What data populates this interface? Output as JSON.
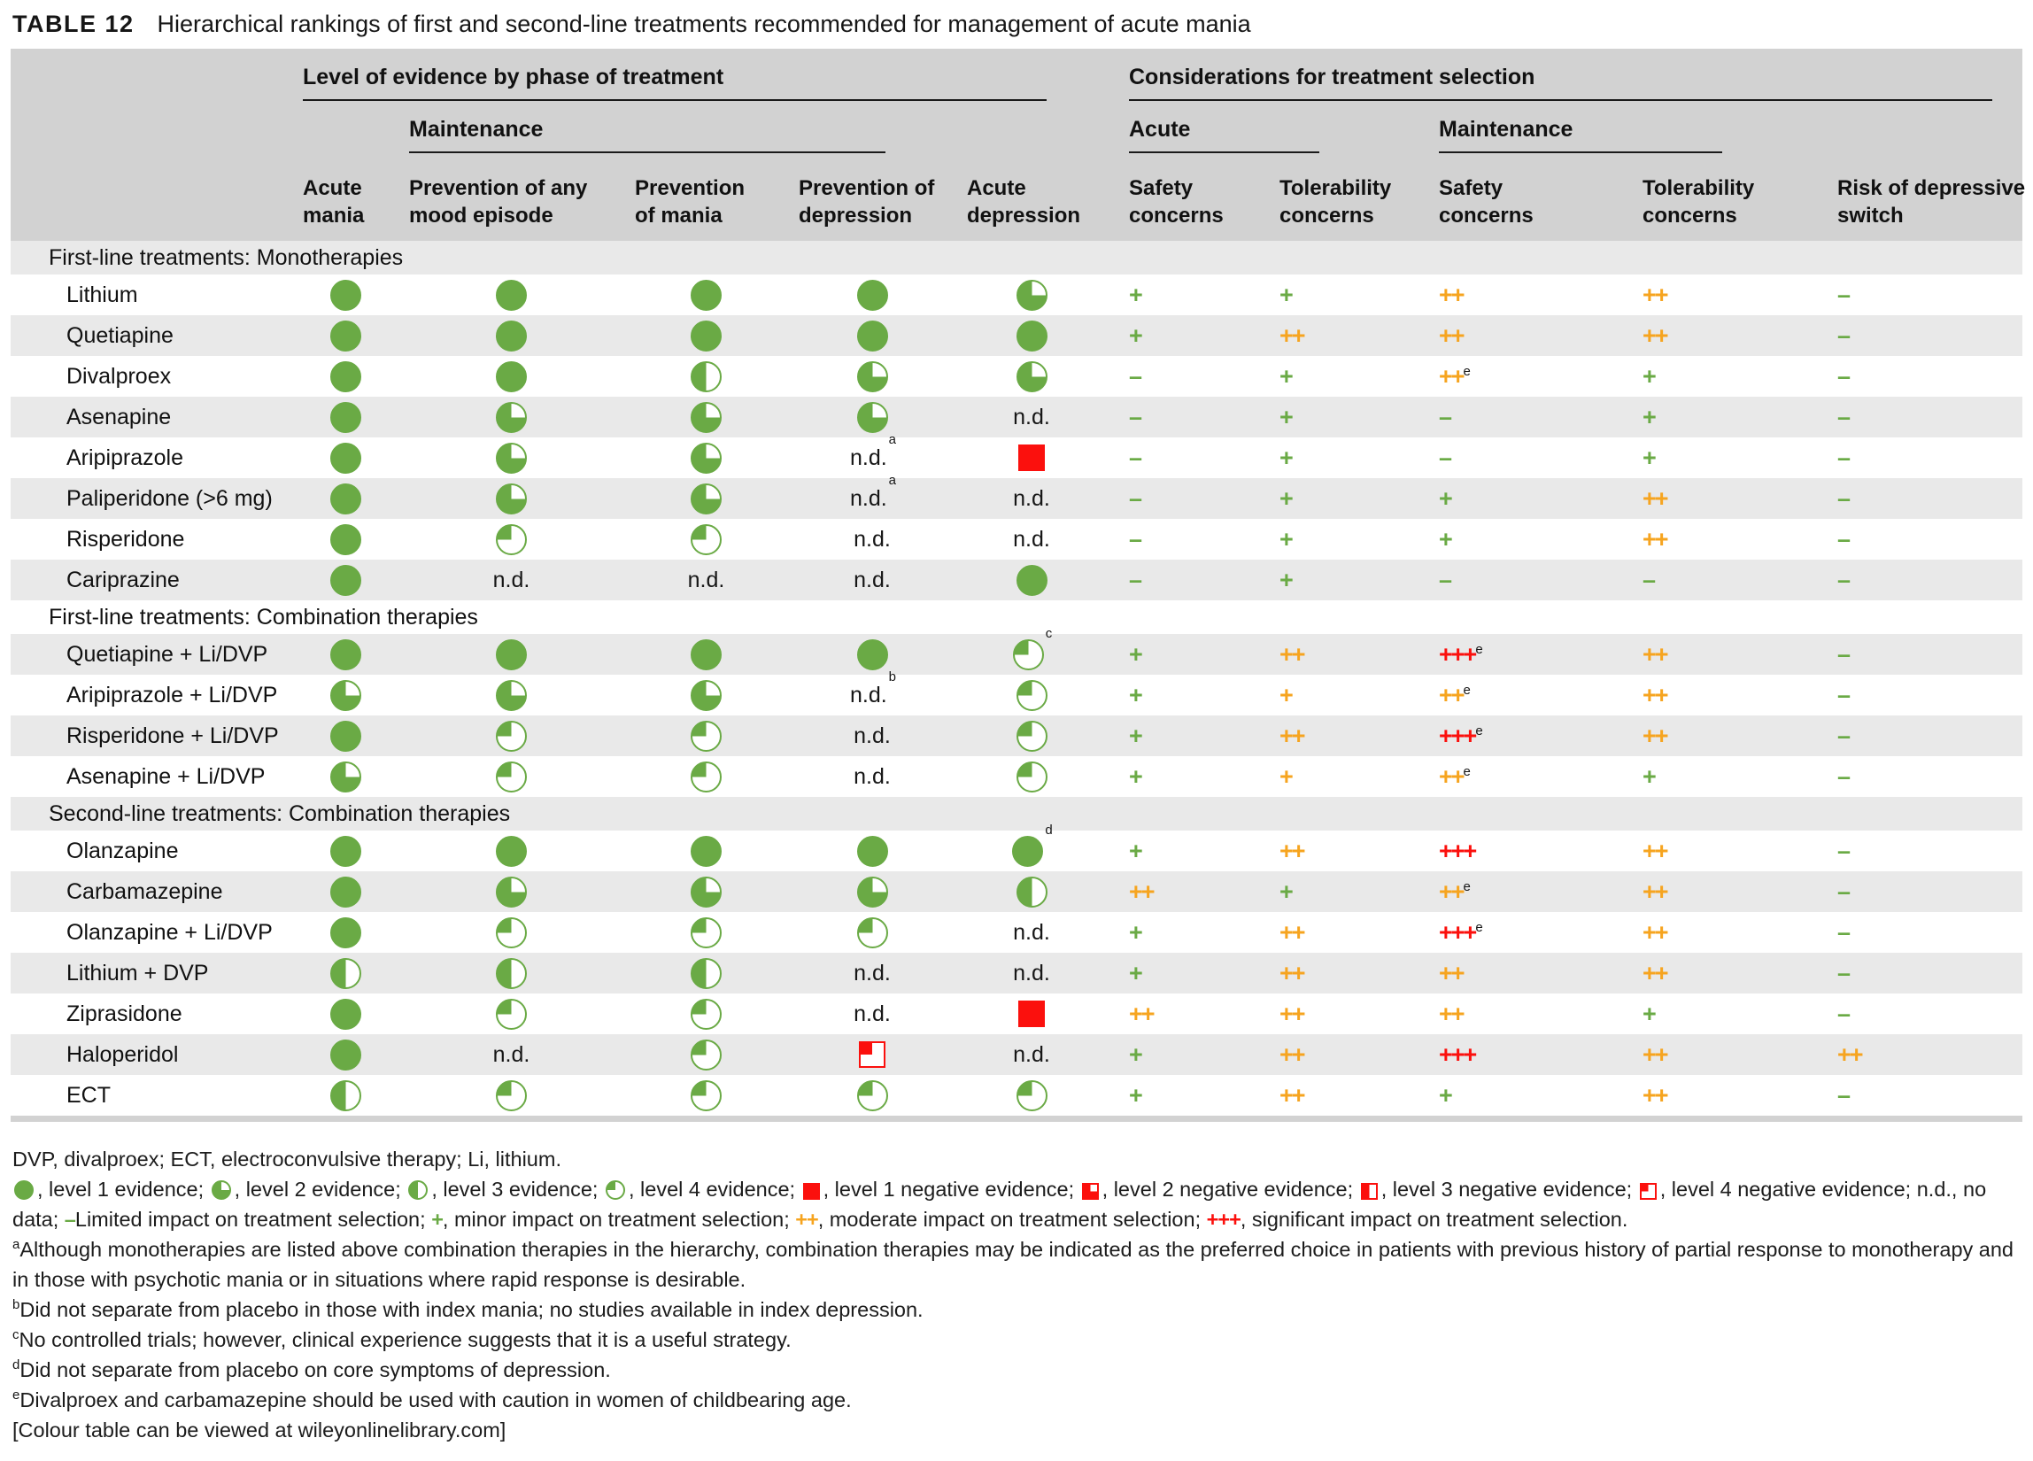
{
  "title": {
    "label": "TABLE 12",
    "text": "Hierarchical rankings of first and second-line treatments recommended for management of acute mania"
  },
  "header": {
    "evidence_group": "Level of evidence by phase of treatment",
    "considerations_group": "Considerations for treatment selection",
    "evidence_maintenance": "Maintenance",
    "considerations_acute": "Acute",
    "considerations_maintenance": "Maintenance",
    "columns": [
      {
        "line1": "Acute",
        "line2": "mania"
      },
      {
        "line1": "Prevention of any",
        "line2": "mood episode"
      },
      {
        "line1": "Prevention",
        "line2": "of mania"
      },
      {
        "line1": "Prevention of",
        "line2": "depression"
      },
      {
        "line1": "Acute",
        "line2": "depression"
      },
      {
        "line1": "Safety",
        "line2": "concerns"
      },
      {
        "line1": "Tolerability",
        "line2": "concerns"
      },
      {
        "line1": "Safety",
        "line2": "concerns"
      },
      {
        "line1": "Tolerability",
        "line2": "concerns"
      },
      {
        "line1": "Risk of depressive",
        "line2": "switch"
      }
    ]
  },
  "icon_legend_names": {
    "p100": "level-1-evidence",
    "p75": "level-2-evidence",
    "p50": "level-3-evidence",
    "p25": "level-4-evidence",
    "n100": "level-1-negative-evidence",
    "n75": "level-2-negative-evidence",
    "n50": "level-3-negative-evidence",
    "n25": "level-4-negative-evidence"
  },
  "sections": [
    {
      "label": "First-line treatments: Monotherapies",
      "rows": [
        {
          "name": "Lithium",
          "evidence": [
            "p100",
            "p100",
            "p100",
            "p100",
            "p75"
          ],
          "impact": [
            "+g",
            "+g",
            "++o",
            "++o",
            "-g"
          ]
        },
        {
          "name": "Quetiapine",
          "evidence": [
            "p100",
            "p100",
            "p100",
            "p100",
            "p100"
          ],
          "impact": [
            "+g",
            "++o",
            "++o",
            "++o",
            "-g"
          ]
        },
        {
          "name": "Divalproex",
          "evidence": [
            "p100",
            "p100",
            "p50",
            "p75",
            "p75"
          ],
          "impact": [
            "-g",
            "+g",
            "++o^e",
            "+g",
            "-g"
          ]
        },
        {
          "name": "Asenapine",
          "evidence": [
            "p100",
            "p75",
            "p75",
            "p75",
            "nd"
          ],
          "impact": [
            "-g",
            "+g",
            "-g",
            "+g",
            "-g"
          ]
        },
        {
          "name": "Aripiprazole",
          "evidence": [
            "p100",
            "p75",
            "p75",
            "nd^a",
            "n100"
          ],
          "impact": [
            "-g",
            "+g",
            "-g",
            "+g",
            "-g"
          ]
        },
        {
          "name": "Paliperidone (>6 mg)",
          "evidence": [
            "p100",
            "p75",
            "p75",
            "nd^a",
            "nd"
          ],
          "impact": [
            "-g",
            "+g",
            "+g",
            "++o",
            "-g"
          ]
        },
        {
          "name": "Risperidone",
          "evidence": [
            "p100",
            "p25",
            "p25",
            "nd",
            "nd"
          ],
          "impact": [
            "-g",
            "+g",
            "+g",
            "++o",
            "-g"
          ]
        },
        {
          "name": "Cariprazine",
          "evidence": [
            "p100",
            "nd",
            "nd",
            "nd",
            "p100"
          ],
          "impact": [
            "-g",
            "+g",
            "-g",
            "-g",
            "-g"
          ]
        }
      ]
    },
    {
      "label": "First-line treatments: Combination therapies",
      "rows": [
        {
          "name": "Quetiapine + Li/DVP",
          "evidence": [
            "p100",
            "p100",
            "p100",
            "p100",
            "p25^c"
          ],
          "impact": [
            "+g",
            "++o",
            "+++r^e",
            "++o",
            "-g"
          ]
        },
        {
          "name": "Aripiprazole + Li/DVP",
          "evidence": [
            "p75",
            "p75",
            "p75",
            "nd^b",
            "p25"
          ],
          "impact": [
            "+g",
            "+o",
            "++o^e",
            "++o",
            "-g"
          ]
        },
        {
          "name": "Risperidone + Li/DVP",
          "evidence": [
            "p100",
            "p25",
            "p25",
            "nd",
            "p25"
          ],
          "impact": [
            "+g",
            "++o",
            "+++r^e",
            "++o",
            "-g"
          ]
        },
        {
          "name": "Asenapine + Li/DVP",
          "evidence": [
            "p75",
            "p25",
            "p25",
            "nd",
            "p25"
          ],
          "impact": [
            "+g",
            "+o",
            "++o^e",
            "+g",
            "-g"
          ]
        }
      ]
    },
    {
      "label": "Second-line treatments: Combination therapies",
      "rows": [
        {
          "name": "Olanzapine",
          "evidence": [
            "p100",
            "p100",
            "p100",
            "p100",
            "p100^d"
          ],
          "impact": [
            "+g",
            "++o",
            "+++r",
            "++o",
            "-g"
          ]
        },
        {
          "name": "Carbamazepine",
          "evidence": [
            "p100",
            "p75",
            "p75",
            "p75",
            "p50"
          ],
          "impact": [
            "++o",
            "+g",
            "++o^e",
            "++o",
            "-g"
          ]
        },
        {
          "name": "Olanzapine + Li/DVP",
          "evidence": [
            "p100",
            "p25",
            "p25",
            "p25",
            "nd"
          ],
          "impact": [
            "+g",
            "++o",
            "+++r^e",
            "++o",
            "-g"
          ]
        },
        {
          "name": "Lithium + DVP",
          "evidence": [
            "p50",
            "p50",
            "p50",
            "nd",
            "nd"
          ],
          "impact": [
            "+g",
            "++o",
            "++o",
            "++o",
            "-g"
          ]
        },
        {
          "name": "Ziprasidone",
          "evidence": [
            "p100",
            "p25",
            "p25",
            "nd",
            "n100"
          ],
          "impact": [
            "++o",
            "++o",
            "++o",
            "+g",
            "-g"
          ]
        },
        {
          "name": "Haloperidol",
          "evidence": [
            "p100",
            "nd",
            "p25",
            "n25",
            "nd"
          ],
          "impact": [
            "+g",
            "++o",
            "+++r",
            "++o",
            "++o"
          ]
        },
        {
          "name": "ECT",
          "evidence": [
            "p50",
            "p25",
            "p25",
            "p25",
            "p25"
          ],
          "impact": [
            "+g",
            "++o",
            "+g",
            "++o",
            "-g"
          ]
        }
      ]
    }
  ],
  "legend": {
    "abbreviations": "DVP, divalproex; ECT, electroconvulsive therapy; Li, lithium.",
    "parts": [
      {
        "icon": "p100"
      },
      {
        "text": ", level 1 evidence; "
      },
      {
        "icon": "p75"
      },
      {
        "text": ", level 2 evidence; "
      },
      {
        "icon": "p50"
      },
      {
        "text": ", level 3 evidence; "
      },
      {
        "icon": "p25"
      },
      {
        "text": ", level 4 evidence; "
      },
      {
        "icon": "n100"
      },
      {
        "text": ", level 1 negative evidence; "
      },
      {
        "icon": "n75"
      },
      {
        "text": ", level 2 negative evidence; "
      },
      {
        "icon": "n50"
      },
      {
        "text": ", level 3 negative evidence; "
      },
      {
        "icon": "n25"
      },
      {
        "text": ", level 4 negative evidence; n.d., no data; "
      },
      {
        "sym": "-g"
      },
      {
        "text": "Limited impact on treatment selection; "
      },
      {
        "sym": "+g"
      },
      {
        "text": ", minor impact on treatment selection; "
      },
      {
        "sym": "++o"
      },
      {
        "text": ", moderate impact on treatment selection; "
      },
      {
        "sym": "+++r"
      },
      {
        "text": ", significant impact on treatment selection."
      }
    ],
    "notes": [
      {
        "sup": "a",
        "text": "Although monotherapies are listed above combination therapies in the hierarchy, combination therapies may be indicated as the preferred choice in patients with previous history of partial response to monotherapy and in those with psychotic mania or in situations where rapid response is desirable."
      },
      {
        "sup": "b",
        "text": "Did not separate from placebo in those with index mania; no studies available in index depression."
      },
      {
        "sup": "c",
        "text": "No controlled trials; however, clinical experience suggests that it is a useful strategy."
      },
      {
        "sup": "d",
        "text": "Did not separate from placebo on core symptoms of depression."
      },
      {
        "sup": "e",
        "text": "Divalproex and carbamazepine should be used with caution in women of childbearing age."
      }
    ],
    "colour_note": "[Colour table can be viewed at wileyonlinelibrary.com]"
  },
  "colors": {
    "green": "#6aaa45",
    "orange": "#f6a41f",
    "red": "#fb100d",
    "header_band": "#d2d2d2",
    "row_alt": "#e9e9e9"
  }
}
